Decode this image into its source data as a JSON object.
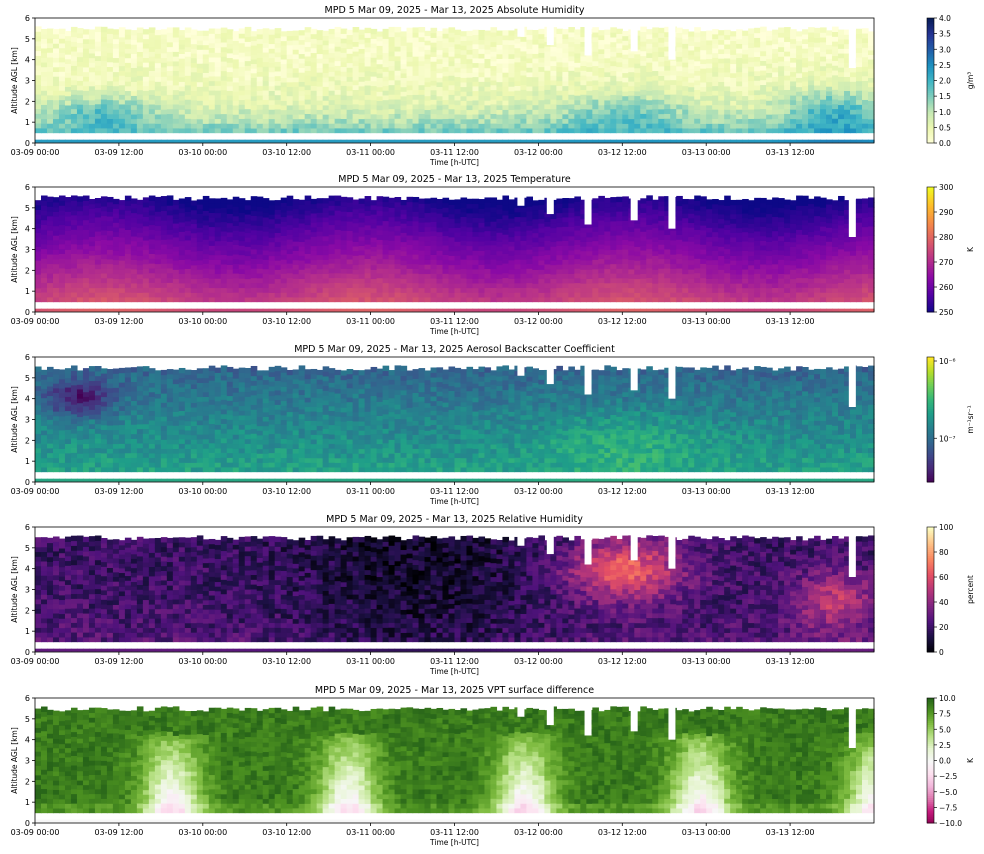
{
  "chart_data": [
    {
      "type": "heatmap",
      "title": "MPD 5 Mar 09, 2025 - Mar 13, 2025 Absolute Humidity",
      "xlabel": "Time [h-UTC]",
      "ylabel": "Altitude AGL [km]",
      "x_ticks": [
        "03-09 00:00",
        "03-09 12:00",
        "03-10 00:00",
        "03-10 12:00",
        "03-11 00:00",
        "03-11 12:00",
        "03-12 00:00",
        "03-12 12:00",
        "03-13 00:00",
        "03-13 12:00"
      ],
      "y_ticks": [
        "0",
        "1",
        "2",
        "3",
        "4",
        "5",
        "6"
      ],
      "ylim": [
        0,
        6
      ],
      "colorbar": {
        "label": "g/m³",
        "ticks": [
          "4.0",
          "3.5",
          "3.0",
          "2.5",
          "2.0",
          "1.5",
          "1.0",
          "0.5",
          "0.0"
        ],
        "range": [
          0.0,
          4.0
        ],
        "colors": [
          "#ffffd9",
          "#edf8b1",
          "#c7e9b4",
          "#7fcdbb",
          "#41b6c4",
          "#1d91c0",
          "#225ea8",
          "#253494",
          "#081d58"
        ]
      }
    },
    {
      "type": "heatmap",
      "title": "MPD 5 Mar 09, 2025 - Mar 13, 2025 Temperature",
      "xlabel": "Time [h-UTC]",
      "ylabel": "Altitude AGL [km]",
      "x_ticks": [
        "03-09 00:00",
        "03-09 12:00",
        "03-10 00:00",
        "03-10 12:00",
        "03-11 00:00",
        "03-11 12:00",
        "03-12 00:00",
        "03-12 12:00",
        "03-13 00:00",
        "03-13 12:00"
      ],
      "y_ticks": [
        "0",
        "1",
        "2",
        "3",
        "4",
        "5",
        "6"
      ],
      "ylim": [
        0,
        6
      ],
      "colorbar": {
        "label": "K",
        "ticks": [
          "300",
          "290",
          "280",
          "270",
          "260",
          "250"
        ],
        "range": [
          250,
          300
        ],
        "colors": [
          "#0d0887",
          "#5302a3",
          "#8b0aa5",
          "#b83289",
          "#db5c68",
          "#f48849",
          "#febd2a",
          "#f0f921"
        ]
      }
    },
    {
      "type": "heatmap",
      "title": "MPD 5 Mar 09, 2025 - Mar 13, 2025 Aerosol Backscatter Coefficient",
      "xlabel": "Time [h-UTC]",
      "ylabel": "Altitude AGL [km]",
      "x_ticks": [
        "03-09 00:00",
        "03-09 12:00",
        "03-10 00:00",
        "03-10 12:00",
        "03-11 00:00",
        "03-11 12:00",
        "03-12 00:00",
        "03-12 12:00",
        "03-13 00:00",
        "03-13 12:00"
      ],
      "y_ticks": [
        "0",
        "1",
        "2",
        "3",
        "4",
        "5",
        "6"
      ],
      "ylim": [
        0,
        6
      ],
      "colorbar": {
        "label": "m⁻¹sr⁻¹",
        "ticks": [
          "10⁻⁶",
          "10⁻⁷"
        ],
        "scale": "log",
        "colors": [
          "#440154",
          "#482878",
          "#3e4989",
          "#31688e",
          "#26828e",
          "#1f9e89",
          "#35b779",
          "#6ece58",
          "#b5de2b",
          "#fde725"
        ]
      }
    },
    {
      "type": "heatmap",
      "title": "MPD 5 Mar 09, 2025 - Mar 13, 2025 Relative Humidity",
      "xlabel": "Time [h-UTC]",
      "ylabel": "Altitude AGL [km]",
      "x_ticks": [
        "03-09 00:00",
        "03-09 12:00",
        "03-10 00:00",
        "03-10 12:00",
        "03-11 00:00",
        "03-11 12:00",
        "03-12 00:00",
        "03-12 12:00",
        "03-13 00:00",
        "03-13 12:00"
      ],
      "y_ticks": [
        "0",
        "1",
        "2",
        "3",
        "4",
        "5",
        "6"
      ],
      "ylim": [
        0,
        6
      ],
      "colorbar": {
        "label": "percent",
        "ticks": [
          "100",
          "80",
          "60",
          "40",
          "20",
          "0"
        ],
        "range": [
          0,
          100
        ],
        "colors": [
          "#000004",
          "#1c1044",
          "#4f127b",
          "#812581",
          "#b5367a",
          "#e55064",
          "#fb8761",
          "#fec287",
          "#fcfdbf"
        ]
      }
    },
    {
      "type": "heatmap",
      "title": "MPD 5 Mar 09, 2025 - Mar 13, 2025 VPT surface difference",
      "xlabel": "Time [h-UTC]",
      "ylabel": "Altitude AGL [km]",
      "x_ticks": [
        "03-09 00:00",
        "03-09 12:00",
        "03-10 00:00",
        "03-10 12:00",
        "03-11 00:00",
        "03-11 12:00",
        "03-12 00:00",
        "03-12 12:00",
        "03-13 00:00",
        "03-13 12:00"
      ],
      "y_ticks": [
        "0",
        "1",
        "2",
        "3",
        "4",
        "5",
        "6"
      ],
      "ylim": [
        0,
        6
      ],
      "colorbar": {
        "label": "K",
        "ticks": [
          "10.0",
          "7.5",
          "5.0",
          "2.5",
          "0.0",
          "−2.5",
          "−5.0",
          "−7.5",
          "−10.0"
        ],
        "range": [
          -10,
          10
        ],
        "colors": [
          "#8e0152",
          "#c51b7d",
          "#de77ae",
          "#f1b6da",
          "#fde0ef",
          "#f7f7f7",
          "#e6f5d0",
          "#b8e186",
          "#7fbc41",
          "#4d9221",
          "#276419"
        ]
      }
    }
  ]
}
